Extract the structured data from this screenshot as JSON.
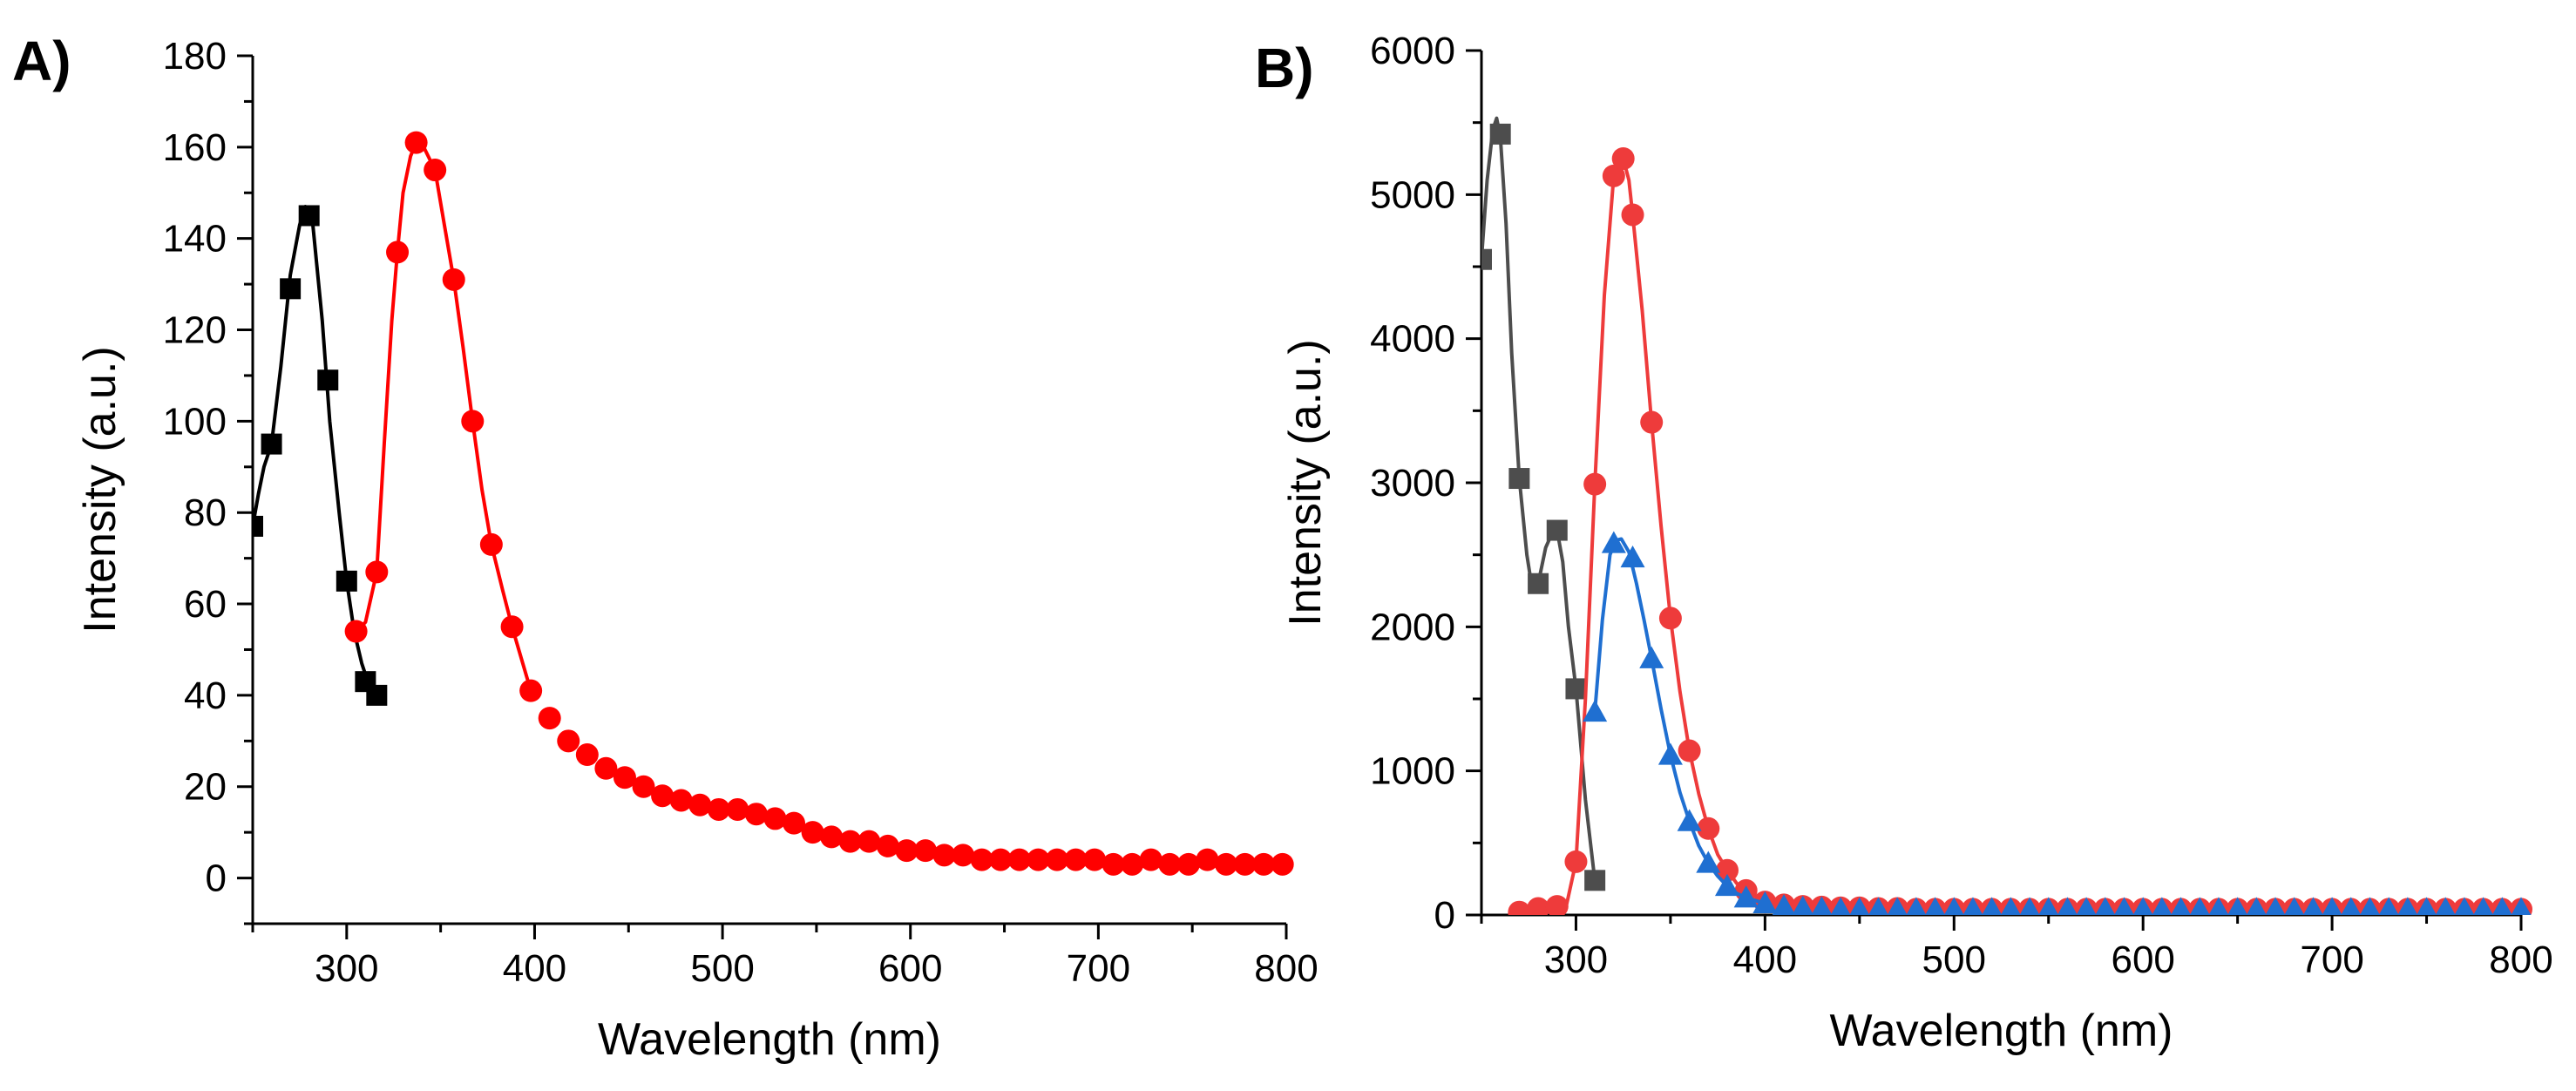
{
  "chart_data": [
    {
      "panel_label": "A)",
      "type": "line",
      "xlabel": "Wavelength (nm)",
      "ylabel": "Intensity (a.u.)",
      "xlim": [
        250,
        800
      ],
      "ylim": [
        -10,
        180
      ],
      "xticks": [
        300,
        400,
        500,
        600,
        700,
        800
      ],
      "yticks": [
        0,
        20,
        40,
        60,
        80,
        100,
        120,
        140,
        160,
        180
      ],
      "grid": false,
      "legend": "none",
      "series": [
        {
          "color": "#000000",
          "marker": "square",
          "x": [
            250,
            260,
            270,
            280,
            290,
            300,
            310,
            316
          ],
          "y": [
            77,
            95,
            129,
            145,
            109,
            65,
            43,
            40
          ],
          "curve_x": [
            250,
            253,
            256,
            260,
            265,
            270,
            275,
            278,
            282,
            287,
            291,
            296,
            300,
            304,
            308,
            312,
            316
          ],
          "curve_y": [
            77,
            84,
            90,
            95,
            112,
            132,
            143,
            147,
            143,
            122,
            100,
            80,
            65,
            54,
            47,
            42,
            40
          ]
        },
        {
          "color": "#ff0000",
          "marker": "circle",
          "x": [
            305,
            316,
            327,
            337,
            347,
            357,
            367,
            377,
            388,
            398,
            408,
            418,
            428,
            438,
            448,
            458,
            468,
            478,
            488,
            498,
            508,
            518,
            528,
            538,
            548,
            558,
            568,
            578,
            588,
            598,
            608,
            618,
            628,
            638,
            648,
            658,
            668,
            678,
            688,
            698,
            708,
            718,
            728,
            738,
            748,
            758,
            768,
            778,
            788,
            798
          ],
          "y": [
            54,
            67,
            137,
            161,
            155,
            131,
            100,
            73,
            55,
            41,
            35,
            30,
            27,
            24,
            22,
            20,
            18,
            17,
            16,
            15,
            15,
            14,
            13,
            12,
            10,
            9,
            8,
            8,
            7,
            6,
            6,
            5,
            5,
            4,
            4,
            4,
            4,
            4,
            4,
            4,
            3,
            3,
            4,
            3,
            3,
            4,
            3,
            3,
            3,
            3
          ],
          "curve_x": [
            305,
            310,
            316,
            320,
            324,
            327,
            330,
            334,
            337,
            341,
            347,
            352,
            357,
            362,
            367,
            372,
            377,
            383,
            388,
            398
          ],
          "curve_y": [
            54,
            56,
            67,
            95,
            122,
            137,
            150,
            158,
            161,
            160,
            155,
            143,
            131,
            116,
            100,
            85,
            73,
            63,
            55,
            41
          ]
        }
      ]
    },
    {
      "panel_label": "B)",
      "type": "line",
      "xlabel": "Wavelength (nm)",
      "ylabel": "Intensity (a.u.)",
      "xlim": [
        250,
        800
      ],
      "ylim": [
        0,
        6000
      ],
      "xticks": [
        300,
        400,
        500,
        600,
        700,
        800
      ],
      "yticks": [
        0,
        1000,
        2000,
        3000,
        4000,
        5000,
        6000
      ],
      "grid": false,
      "legend": "none",
      "series": [
        {
          "color": "#4d4d4d",
          "marker": "square",
          "x": [
            250,
            260,
            270,
            280,
            290,
            300,
            310
          ],
          "y": [
            4550,
            5420,
            3030,
            2300,
            2670,
            1570,
            240
          ],
          "curve_x": [
            250,
            253,
            256,
            258,
            260,
            263,
            266,
            270,
            274,
            277,
            280,
            284,
            287,
            290,
            293,
            296,
            300,
            305,
            310
          ],
          "curve_y": [
            4550,
            5100,
            5450,
            5530,
            5400,
            4800,
            3900,
            3030,
            2500,
            2250,
            2300,
            2550,
            2640,
            2670,
            2450,
            2000,
            1570,
            800,
            240
          ]
        },
        {
          "color": "#ee3b3b",
          "marker": "circle",
          "x": [
            270,
            280,
            290,
            300,
            310,
            320,
            325,
            330,
            340,
            350,
            360,
            370,
            380,
            390,
            400,
            410,
            420,
            430,
            440,
            450,
            460,
            470,
            480,
            490,
            500,
            510,
            520,
            530,
            540,
            550,
            560,
            570,
            580,
            590,
            600,
            610,
            620,
            630,
            640,
            650,
            660,
            670,
            680,
            690,
            700,
            710,
            720,
            730,
            740,
            750,
            760,
            770,
            780,
            790,
            800
          ],
          "y": [
            20,
            45,
            60,
            370,
            2990,
            5130,
            5250,
            4860,
            3420,
            2060,
            1140,
            600,
            310,
            170,
            90,
            70,
            60,
            55,
            50,
            50,
            45,
            45,
            40,
            40,
            40,
            40,
            40,
            40,
            40,
            40,
            40,
            40,
            40,
            40,
            40,
            40,
            40,
            40,
            40,
            40,
            40,
            40,
            40,
            40,
            40,
            40,
            40,
            40,
            40,
            40,
            40,
            40,
            40,
            40,
            40
          ],
          "curve_x": [
            270,
            280,
            290,
            295,
            300,
            305,
            310,
            315,
            320,
            323,
            325,
            328,
            330,
            335,
            340,
            345,
            350,
            355,
            360,
            365,
            370,
            375,
            380,
            385,
            390,
            400
          ],
          "curve_y": [
            20,
            30,
            40,
            70,
            370,
            1500,
            2990,
            4300,
            5130,
            5260,
            5250,
            5100,
            4860,
            4200,
            3420,
            2700,
            2060,
            1550,
            1140,
            840,
            600,
            420,
            310,
            220,
            170,
            90
          ]
        },
        {
          "color": "#1f6fd1",
          "marker": "triangle",
          "x": [
            310,
            320,
            330,
            340,
            350,
            360,
            370,
            380,
            390,
            400,
            410,
            420,
            430,
            440,
            450,
            460,
            470,
            480,
            490,
            500,
            510,
            520,
            530,
            540,
            550,
            560,
            570,
            580,
            590,
            600,
            610,
            620,
            630,
            640,
            650,
            660,
            670,
            680,
            690,
            700,
            710,
            720,
            730,
            740,
            750,
            760,
            770,
            780,
            790,
            800
          ],
          "y": [
            1410,
            2580,
            2480,
            1780,
            1110,
            650,
            360,
            200,
            120,
            80,
            60,
            50,
            45,
            40,
            40,
            40,
            40,
            40,
            40,
            40,
            40,
            40,
            40,
            40,
            40,
            40,
            40,
            40,
            40,
            40,
            40,
            40,
            40,
            40,
            40,
            40,
            40,
            40,
            40,
            40,
            40,
            40,
            40,
            40,
            40,
            40,
            40,
            40,
            40,
            40
          ],
          "curve_x": [
            310,
            314,
            318,
            321,
            324,
            328,
            332,
            336,
            340,
            345,
            350,
            355,
            360,
            365,
            370,
            375,
            380,
            385,
            390,
            400
          ],
          "curve_y": [
            1410,
            2050,
            2500,
            2600,
            2610,
            2520,
            2300,
            2050,
            1780,
            1430,
            1110,
            850,
            650,
            480,
            360,
            270,
            200,
            150,
            120,
            80
          ]
        }
      ]
    }
  ]
}
